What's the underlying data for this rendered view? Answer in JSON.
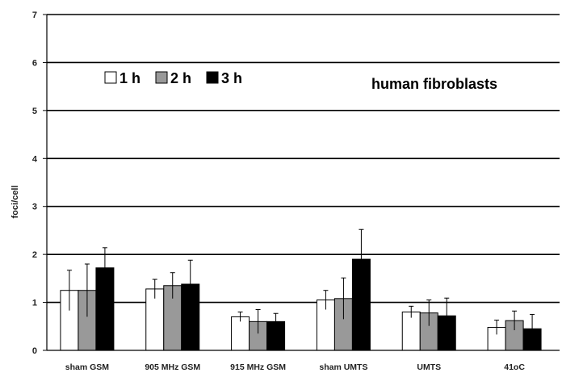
{
  "chart_data": {
    "type": "bar",
    "title": "",
    "xlabel": "",
    "ylabel": "foci/cell",
    "ylim": [
      0,
      7
    ],
    "yticks": [
      0,
      1,
      2,
      3,
      4,
      5,
      6,
      7
    ],
    "grid": true,
    "legend_position": "top-left",
    "annotation": "human fibroblasts",
    "categories": [
      "sham GSM",
      "905 MHz GSM",
      "915 MHz GSM",
      "sham UMTS",
      "UMTS",
      "41oC"
    ],
    "series": [
      {
        "name": "1 h",
        "color": "#ffffff",
        "values": [
          1.25,
          1.28,
          0.7,
          1.05,
          0.8,
          0.48
        ],
        "errors": [
          0.42,
          0.2,
          0.1,
          0.2,
          0.12,
          0.15
        ]
      },
      {
        "name": "2 h",
        "color": "#999999",
        "values": [
          1.25,
          1.35,
          0.6,
          1.08,
          0.78,
          0.62
        ],
        "errors": [
          0.55,
          0.27,
          0.25,
          0.43,
          0.27,
          0.2
        ]
      },
      {
        "name": "3 h",
        "color": "#000000",
        "values": [
          1.72,
          1.38,
          0.6,
          1.9,
          0.72,
          0.45
        ],
        "errors": [
          0.42,
          0.5,
          0.17,
          0.62,
          0.37,
          0.3
        ]
      }
    ]
  }
}
